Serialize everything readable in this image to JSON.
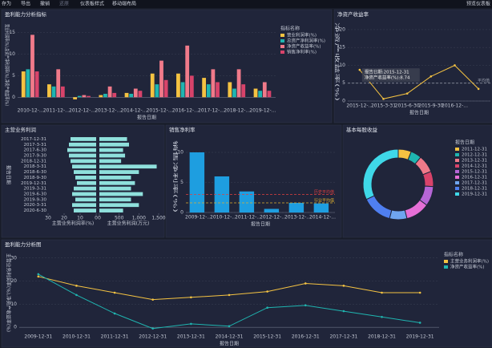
{
  "toolbar": {
    "items": [
      "存为",
      "导出",
      "撤销",
      "还原",
      "仪表板样式",
      "移动端布局"
    ],
    "right": "预览仪表板"
  },
  "chart_data": [
    {
      "type": "bar",
      "title": "盈利能力分析指标",
      "xlabel": "报告日期",
      "ylabel": "营业利润率(%),总资产净利润率(%),净资产收益率(%)",
      "categories": [
        "2010-12-...",
        "2011-12-...",
        "2012-12-...",
        "2013-12-...",
        "2014-12-...",
        "2015-12-...",
        "2016-12-...",
        "2017-12-...",
        "2018-12-...",
        "2019-12-..."
      ],
      "legend_title": "指标名称",
      "series": [
        {
          "name": "营业利润率(%)",
          "color": "#f5c342",
          "values": [
            6,
            3,
            -0.5,
            0.5,
            1,
            5.5,
            5.5,
            4.5,
            3.5,
            2
          ]
        },
        {
          "name": "总资产净利润率(%)",
          "color": "#1fb5b0",
          "values": [
            6.5,
            2.5,
            0.3,
            0.8,
            0.8,
            3,
            3.5,
            3,
            2,
            1.5
          ]
        },
        {
          "name": "净资产收益率(%)",
          "color": "#f07a8a",
          "values": [
            14.5,
            6.5,
            0.5,
            2.5,
            2,
            8.5,
            12,
            6.5,
            6.5,
            3.5
          ]
        },
        {
          "name": "销售净利率(%)",
          "color": "#d8436a",
          "values": [
            6,
            2.5,
            0.3,
            1,
            1.5,
            4,
            5,
            3.5,
            3,
            1.5
          ]
        }
      ],
      "ylim": [
        -2,
        17
      ],
      "yticks": [
        0,
        5,
        10,
        15
      ],
      "grid": true
    },
    {
      "type": "line",
      "title": "净资产收益率",
      "xlabel": "报告日期",
      "ylabel": "净资产收益率(%)",
      "categories": [
        "2015-12-...",
        "2015-3-31",
        "2015-6-30",
        "2015-9-30",
        "2016-12-...",
        null
      ],
      "series": [
        {
          "name": "净资产收益率(%)",
          "color": "#f5c342",
          "values": [
            8.74,
            0.6,
            2.1,
            6.9,
            10,
            3.4
          ]
        }
      ],
      "reference_lines": [
        {
          "label": "平均值",
          "value": 5,
          "color": "#9aa0ad"
        }
      ],
      "tooltip": [
        "报告日期:2015-12-31",
        "净资产收益率(%):8.74"
      ],
      "ylim": [
        0,
        22
      ],
      "yticks": [
        0,
        5,
        10,
        15,
        20
      ],
      "grid": true
    },
    {
      "type": "butterfly",
      "title": "主营业务利润",
      "ylabel": "报告日期",
      "categories": [
        "2017-12-31",
        "2017-3-31",
        "2017-6-30",
        "2017-9-30",
        "2018-12-31",
        "2018-3-31",
        "2018-6-30",
        "2018-9-30",
        "2019-12-31",
        "2019-3-31",
        "2019-6-30",
        "2019-9-30",
        "2020-3-31",
        "2020-6-30"
      ],
      "series": [
        {
          "name": "主营业务利润率(%)",
          "color": "#8fe0dc",
          "values": [
            16,
            17,
            18,
            17,
            16,
            15,
            14,
            13,
            12,
            14,
            15,
            13,
            15,
            14
          ]
        },
        {
          "name": "主营业务利润(万元)",
          "color": "#8fe0dc",
          "axis": "x2",
          "values": [
            700,
            750,
            600,
            650,
            550,
            1450,
            1000,
            800,
            900,
            800,
            1100,
            800,
            1000,
            600
          ]
        }
      ],
      "xlim": [
        0,
        30
      ],
      "xticks": [
        0,
        10,
        20,
        30
      ],
      "x2lim": [
        0,
        1500
      ],
      "x2ticks": [
        0,
        500,
        {
          "value": 1000,
          "label": "1,000"
        },
        {
          "value": 1500,
          "label": "1,500"
        }
      ]
    },
    {
      "type": "bar",
      "title": "销售净利率",
      "xlabel": "报告日期",
      "ylabel": "销售净利率(%)",
      "categories": [
        "2009-12-...",
        "2010-12-...",
        "2011-12-...",
        "2012-12-...",
        "2013-12-...",
        "2014-12-..."
      ],
      "series": [
        {
          "name": "销售净利率(%)",
          "color": "#1e9ee0",
          "values": [
            10,
            6,
            3.5,
            0.6,
            1.6,
            1.5
          ]
        }
      ],
      "reference_lines": [
        {
          "label": "历史平均值",
          "value": 3,
          "color": "#e04040"
        },
        {
          "label": "行业平均值",
          "value": 1.6,
          "color": "#e0b030"
        }
      ],
      "ylim": [
        0,
        12
      ],
      "yticks": [
        0,
        5,
        10
      ],
      "grid": true
    },
    {
      "type": "pie",
      "title": "基本每股收益",
      "legend_title": "报告日期",
      "categories": [
        "2011-12-31",
        "2012-12-31",
        "2013-12-31",
        "2014-12-31",
        "2015-12-31",
        "2016-12-31",
        "2017-12-31",
        "2018-12-31",
        "2019-12-31"
      ],
      "values": [
        6,
        5,
        8,
        7,
        9,
        11,
        8,
        14,
        32
      ],
      "colors": [
        "#f5c342",
        "#1fb5b0",
        "#f07a8a",
        "#d8436a",
        "#b566d6",
        "#e56fd6",
        "#6fa5f0",
        "#4f7ff0",
        "#3fd8e8"
      ]
    },
    {
      "type": "line",
      "title": "盈利能力分析图",
      "xlabel": "报告日期",
      "ylabel": "主营业务利润率(%),净资产收益率(%)",
      "legend_title": "指标名称",
      "categories": [
        "2009-12-31",
        "2010-12-31",
        "2011-12-31",
        "2012-12-31",
        "2013-12-31",
        "2014-12-31",
        "2015-12-31",
        "2016-12-31",
        "2017-12-31",
        "2018-12-31",
        "2019-12-31"
      ],
      "series": [
        {
          "name": "主营业务利润率(%)",
          "color": "#f5c342",
          "values": [
            22,
            18,
            15,
            12,
            13,
            14,
            15.5,
            19,
            18,
            15,
            15
          ]
        },
        {
          "name": "净资产收益率(%)",
          "color": "#1fb5b0",
          "values": [
            23,
            14,
            6,
            -0.5,
            1.5,
            0.5,
            8.5,
            9.5,
            7,
            4.5,
            2
          ]
        }
      ],
      "ylim": [
        -2,
        32
      ],
      "yticks": [
        0,
        10,
        20,
        30
      ],
      "grid": true
    }
  ]
}
